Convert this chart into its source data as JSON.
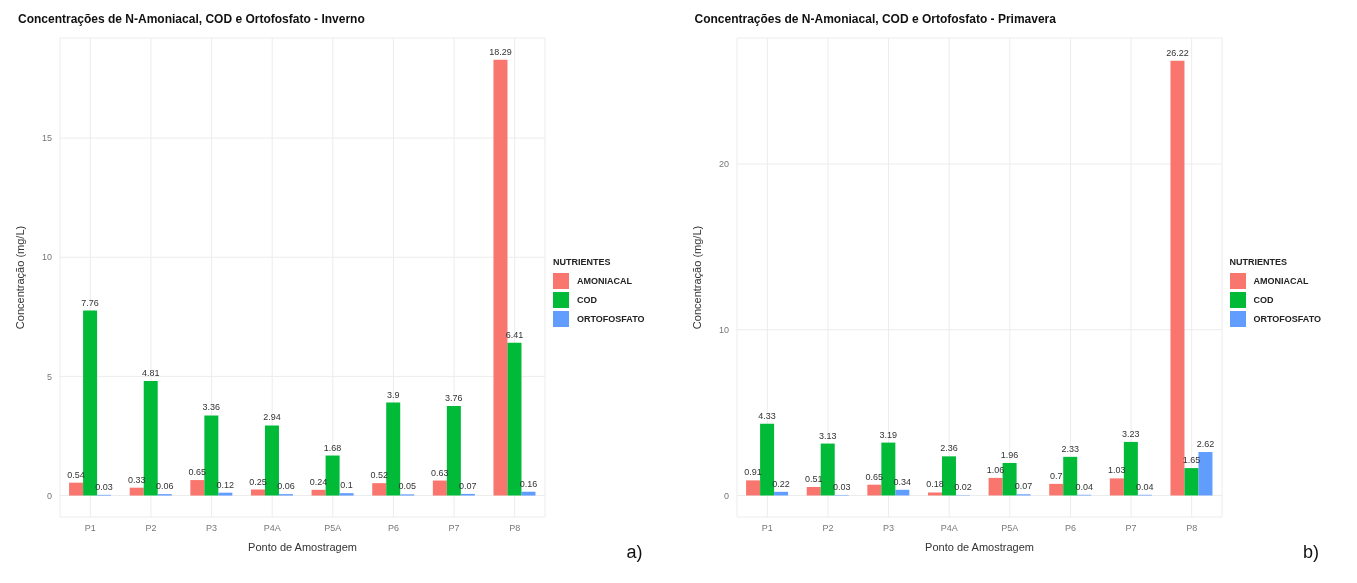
{
  "chart_data": [
    {
      "type": "bar",
      "title": "Concentrações de N-Amoniacal, COD e Ortofosfato - Inverno",
      "xlabel": "Ponto de Amostragem",
      "ylabel": "Concentração (mg/L)",
      "legend_title": "NUTRIENTES",
      "categories": [
        "P1",
        "P2",
        "P3",
        "P4A",
        "P5A",
        "P6",
        "P7",
        "P8"
      ],
      "series": [
        {
          "name": "AMONIACAL",
          "color": "#f8766d",
          "values": [
            0.54,
            0.33,
            0.65,
            0.25,
            0.24,
            0.52,
            0.63,
            18.29
          ]
        },
        {
          "name": "COD",
          "color": "#00ba38",
          "values": [
            7.76,
            4.81,
            3.36,
            2.94,
            1.68,
            3.9,
            3.76,
            6.41
          ]
        },
        {
          "name": "ORTOFOSFATO",
          "color": "#619cff",
          "values": [
            0.03,
            0.06,
            0.12,
            0.06,
            0.1,
            0.05,
            0.07,
            0.16
          ]
        }
      ],
      "ylim": [
        -0.9,
        19.2
      ],
      "yticks": [
        0,
        5,
        10,
        15
      ],
      "grid": true,
      "legend": "right",
      "data_labels": true,
      "annotations": [
        "a)"
      ]
    },
    {
      "type": "bar",
      "title": "Concentrações de N-Amoniacal, COD e Ortofosfato - Primavera",
      "xlabel": "Ponto de Amostragem",
      "ylabel": "Concentração (mg/L)",
      "legend_title": "NUTRIENTES",
      "categories": [
        "P1",
        "P2",
        "P3",
        "P4A",
        "P5A",
        "P6",
        "P7",
        "P8"
      ],
      "series": [
        {
          "name": "AMONIACAL",
          "color": "#f8766d",
          "values": [
            0.91,
            0.51,
            0.65,
            0.18,
            1.06,
            0.7,
            1.03,
            26.22
          ]
        },
        {
          "name": "COD",
          "color": "#00ba38",
          "values": [
            4.33,
            3.13,
            3.19,
            2.36,
            1.96,
            2.33,
            3.23,
            1.65
          ]
        },
        {
          "name": "ORTOFOSFATO",
          "color": "#619cff",
          "values": [
            0.22,
            0.03,
            0.34,
            0.02,
            0.07,
            0.04,
            0.04,
            2.62
          ]
        }
      ],
      "ylim": [
        -1.3,
        27.6
      ],
      "yticks": [
        0,
        10,
        20
      ],
      "grid": true,
      "legend": "right",
      "data_labels": true,
      "annotations": [
        "b)"
      ]
    }
  ]
}
